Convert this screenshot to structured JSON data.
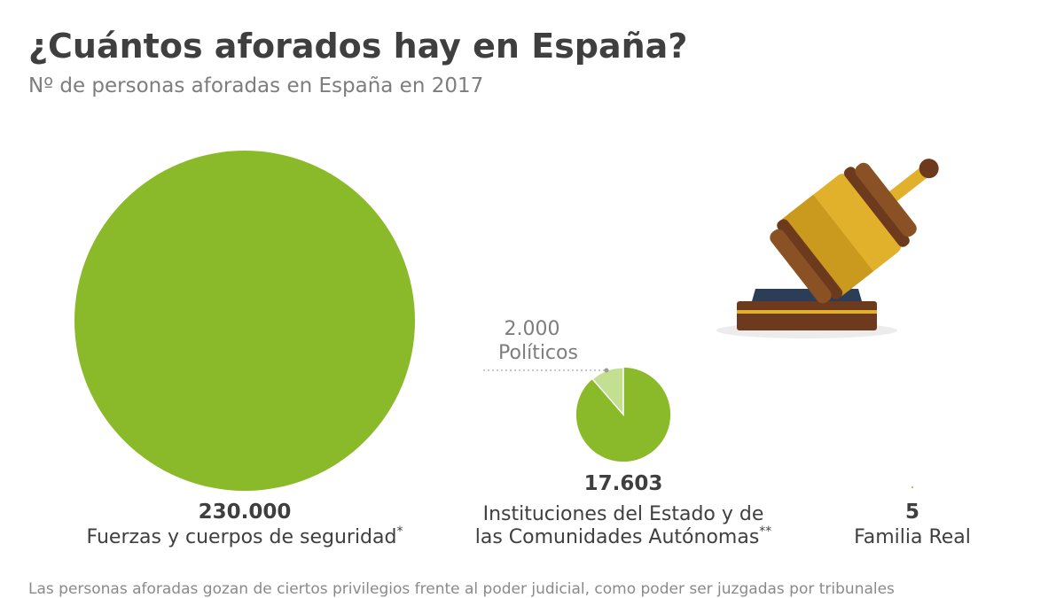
{
  "title": "¿Cuántos aforados hay en España?",
  "subtitle": "Nº de personas aforadas en España en 2017",
  "footnote": "Las personas aforadas gozan de ciertos privilegios frente al poder judicial, como poder ser juzgadas por tribunales",
  "colors": {
    "main": "#8aba29",
    "light": "#c3df91",
    "text": "#3f3f3f",
    "muted": "#7d7d7d"
  },
  "icons": [
    "gavel-icon"
  ],
  "chart_data": {
    "type": "bubble",
    "title": "¿Cuántos aforados hay en España?",
    "subtitle": "Nº de personas aforadas en España en 2017",
    "categories": [
      {
        "name_lines": [
          "Fuerzas y cuerpos de seguridad"
        ],
        "name_sup": "*",
        "value": 230000,
        "value_label": "230.000"
      },
      {
        "name_lines": [
          "Instituciones del Estado y de",
          "las Comunidades Autónomas"
        ],
        "name_sup": "**",
        "value": 17603,
        "value_label": "17.603",
        "breakdown": {
          "name": "Políticos",
          "value": 2000,
          "value_label": "2.000"
        }
      },
      {
        "name_lines": [
          "Familia Real"
        ],
        "name_sup": "",
        "value": 5,
        "value_label": "5"
      }
    ]
  }
}
